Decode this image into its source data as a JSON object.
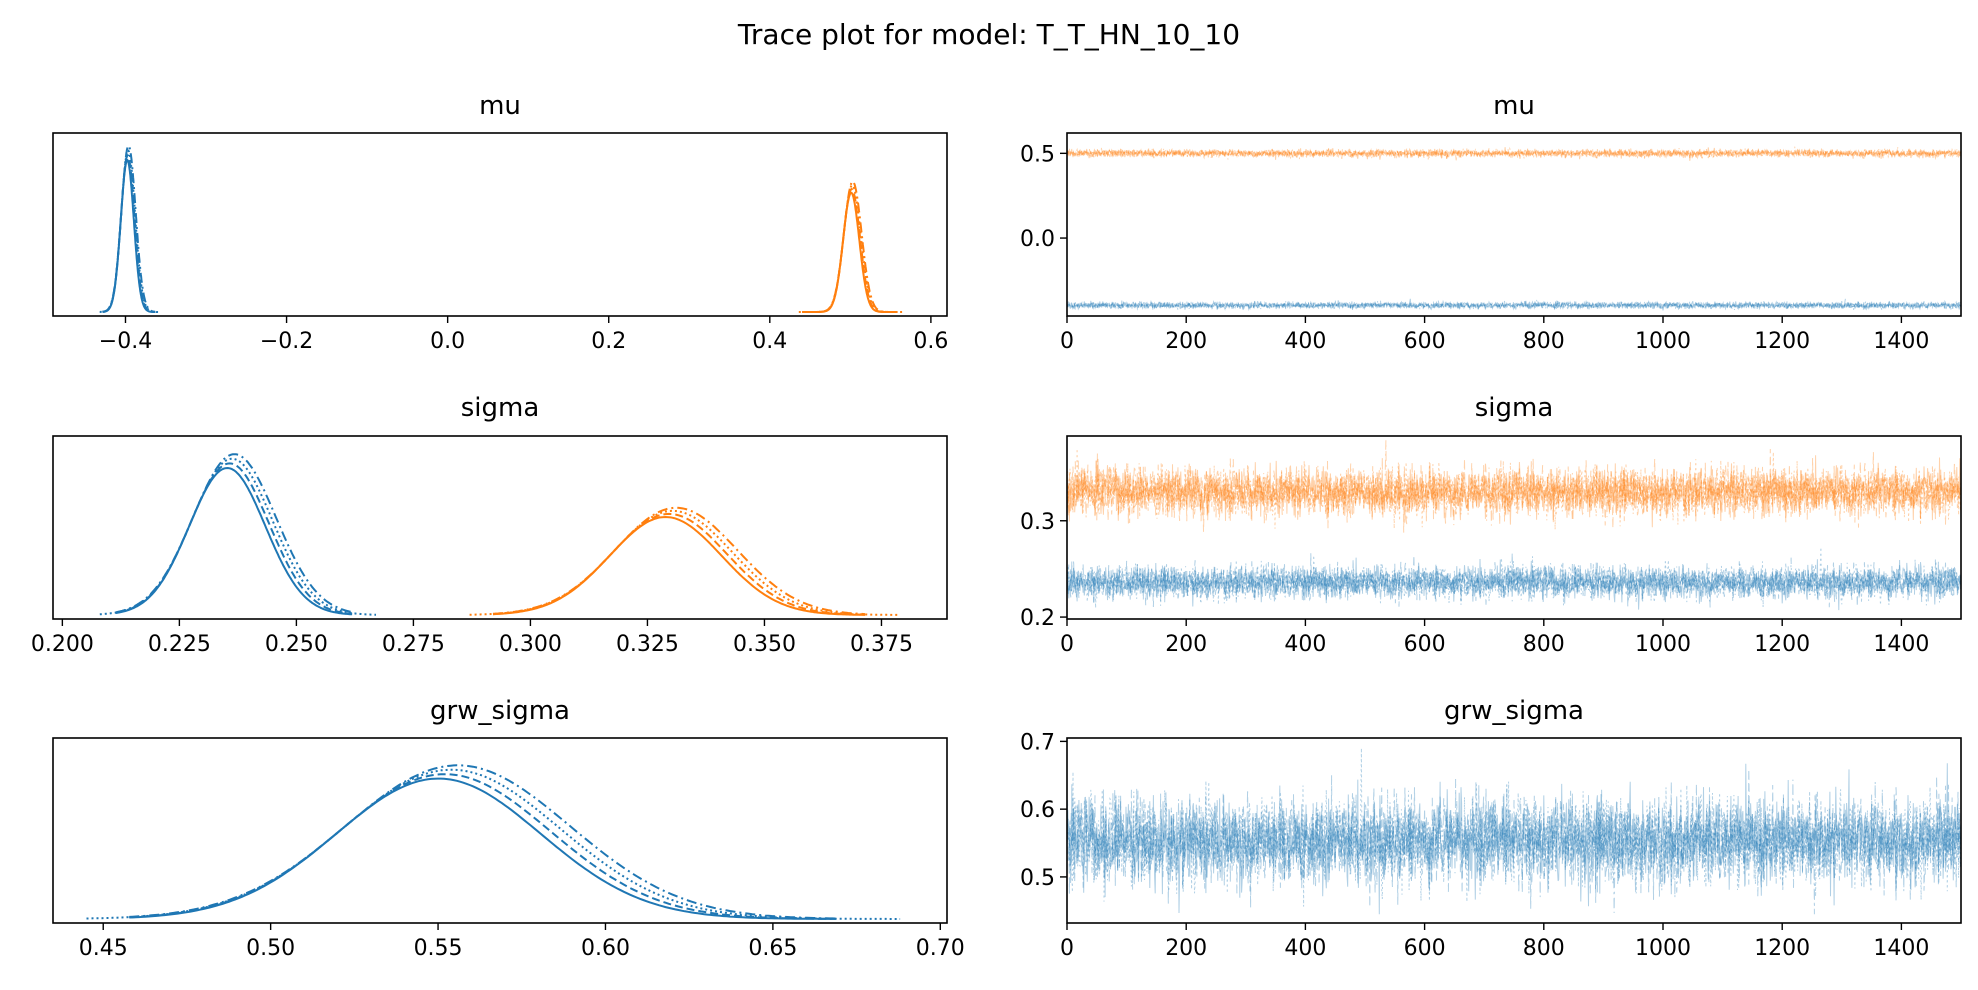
{
  "figure": {
    "title": "Trace plot for model: T_T_HN_10_10"
  },
  "colors": {
    "chain_blue": "#1f77b4",
    "chain_orange": "#ff7f0e"
  },
  "chart_data": [
    {
      "id": "mu-density",
      "type": "line",
      "title": "mu",
      "xlim": [
        -0.49,
        0.62
      ],
      "xticks": [
        "−0.4",
        "−0.2",
        "0.0",
        "0.2",
        "0.4",
        "0.6"
      ],
      "xtick_values": [
        -0.4,
        -0.2,
        0.0,
        0.2,
        0.4,
        0.6
      ],
      "yticks": [],
      "series": [
        {
          "color": "blue",
          "mean": -0.397,
          "sd": 0.0085,
          "range": [
            -0.432,
            -0.358
          ],
          "peak": 0.93
        },
        {
          "color": "orange",
          "mean": 0.502,
          "sd": 0.0105,
          "range": [
            0.436,
            0.565
          ],
          "peak": 0.73
        }
      ]
    },
    {
      "id": "mu-trace",
      "type": "line",
      "title": "mu",
      "xlim": [
        0,
        1500
      ],
      "ylim": [
        -0.46,
        0.62
      ],
      "xticks": [
        "0",
        "200",
        "400",
        "600",
        "800",
        "1000",
        "1200",
        "1400"
      ],
      "xtick_values": [
        0,
        200,
        400,
        600,
        800,
        1000,
        1200,
        1400
      ],
      "yticks": [
        "0.5",
        "0.0"
      ],
      "ytick_values": [
        0.5,
        0.0
      ],
      "series": [
        {
          "color": "orange",
          "mean": 0.5,
          "sd": 0.011
        },
        {
          "color": "blue",
          "mean": -0.397,
          "sd": 0.009
        }
      ]
    },
    {
      "id": "sigma-density",
      "type": "line",
      "title": "sigma",
      "xlim": [
        0.198,
        0.389
      ],
      "xticks": [
        "0.200",
        "0.225",
        "0.250",
        "0.275",
        "0.300",
        "0.325",
        "0.350",
        "0.375"
      ],
      "xtick_values": [
        0.2,
        0.225,
        0.25,
        0.275,
        0.3,
        0.325,
        0.35,
        0.375
      ],
      "yticks": [],
      "series": [
        {
          "color": "blue",
          "mean": 0.236,
          "sd": 0.0085,
          "range": [
            0.208,
            0.267
          ],
          "peak": 0.9
        },
        {
          "color": "orange",
          "mean": 0.33,
          "sd": 0.0125,
          "range": [
            0.287,
            0.379
          ],
          "peak": 0.6
        }
      ]
    },
    {
      "id": "sigma-trace",
      "type": "line",
      "title": "sigma",
      "xlim": [
        0,
        1500
      ],
      "ylim": [
        0.198,
        0.388
      ],
      "xticks": [
        "0",
        "200",
        "400",
        "600",
        "800",
        "1000",
        "1200",
        "1400"
      ],
      "xtick_values": [
        0,
        200,
        400,
        600,
        800,
        1000,
        1200,
        1400
      ],
      "yticks": [
        "0.3",
        "0.2"
      ],
      "ytick_values": [
        0.3,
        0.2
      ],
      "series": [
        {
          "color": "orange",
          "mean": 0.33,
          "sd": 0.0125
        },
        {
          "color": "blue",
          "mean": 0.236,
          "sd": 0.0085
        }
      ]
    },
    {
      "id": "grw-density",
      "type": "line",
      "title": "grw_sigma",
      "xlim": [
        0.435,
        0.702
      ],
      "xticks": [
        "0.45",
        "0.50",
        "0.55",
        "0.60",
        "0.65",
        "0.70"
      ],
      "xtick_values": [
        0.45,
        0.5,
        0.55,
        0.6,
        0.65,
        0.7
      ],
      "yticks": [],
      "series": [
        {
          "color": "blue",
          "mean": 0.553,
          "sd": 0.032,
          "range": [
            0.445,
            0.688
          ],
          "peak": 0.85
        }
      ]
    },
    {
      "id": "grw-trace",
      "type": "line",
      "title": "grw_sigma",
      "xlim": [
        0,
        1500
      ],
      "ylim": [
        0.432,
        0.705
      ],
      "xticks": [
        "0",
        "200",
        "400",
        "600",
        "800",
        "1000",
        "1200",
        "1400"
      ],
      "xtick_values": [
        0,
        200,
        400,
        600,
        800,
        1000,
        1200,
        1400
      ],
      "yticks": [
        "0.7",
        "0.6",
        "0.5"
      ],
      "ytick_values": [
        0.7,
        0.6,
        0.5
      ],
      "series": [
        {
          "color": "blue",
          "mean": 0.553,
          "sd": 0.032
        }
      ]
    }
  ]
}
